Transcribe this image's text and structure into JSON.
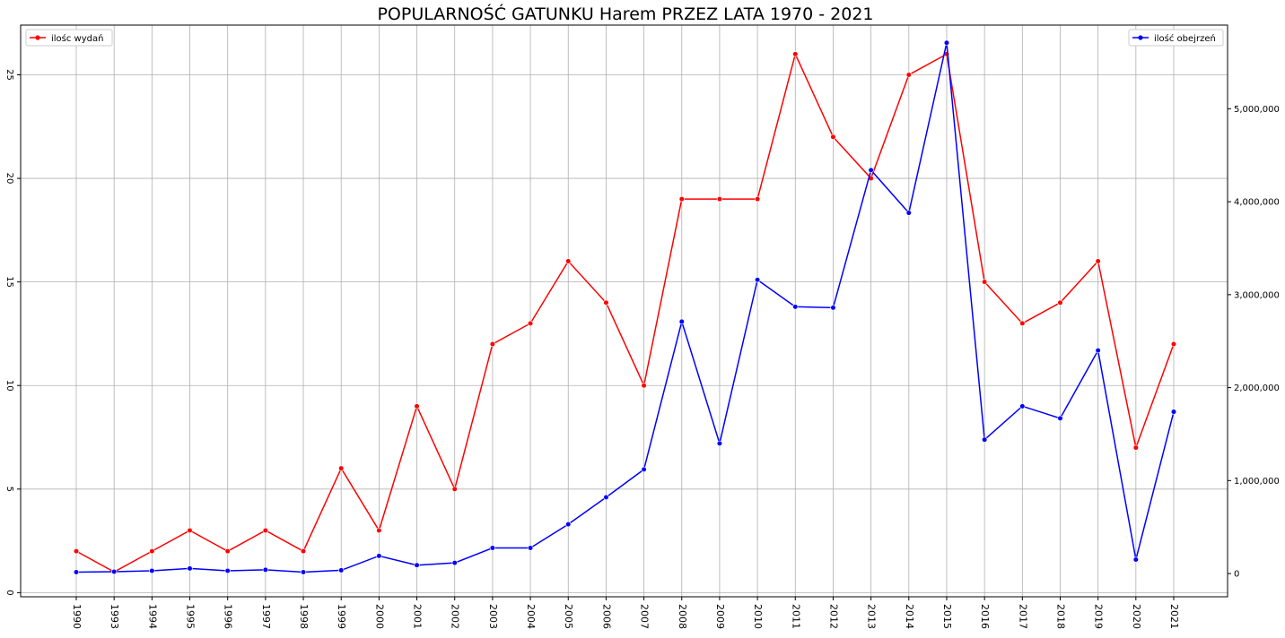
{
  "chart_data": {
    "type": "line",
    "title": "POPULARNOŚĆ GATUNKU Harem PRZEZ LATA 1970 - 2021",
    "xlabel": "",
    "ylabel": "",
    "y2label": "",
    "categories": [
      "1990",
      "1993",
      "1994",
      "1995",
      "1996",
      "1997",
      "1998",
      "1999",
      "2000",
      "2001",
      "2002",
      "2003",
      "2004",
      "2005",
      "2006",
      "2007",
      "2008",
      "2009",
      "2010",
      "2011",
      "2012",
      "2013",
      "2014",
      "2015",
      "2016",
      "2017",
      "2018",
      "2019",
      "2020",
      "2021"
    ],
    "ylim": [
      -0.2,
      27.4
    ],
    "y2lim": [
      -250000,
      5900000
    ],
    "yticks": [
      "0",
      "5",
      "10",
      "15",
      "20",
      "25"
    ],
    "y2ticks": [
      "0",
      "1,000,000",
      "2,000,000",
      "3,000,000",
      "4,000,000",
      "5,000,000"
    ],
    "grid": true,
    "series": [
      {
        "name": "ilośc wydań",
        "axis": "left",
        "color": "#ff0000",
        "legend_position": "top-left",
        "values": [
          2,
          1,
          2,
          3,
          2,
          3,
          2,
          6,
          3,
          9,
          5,
          12,
          13,
          16,
          14,
          10,
          19,
          19,
          19,
          26,
          22,
          20,
          25,
          26,
          15,
          13,
          14,
          16,
          7,
          12
        ]
      },
      {
        "name": "ilość obejrzeń",
        "axis": "right",
        "color": "#0000ff",
        "legend_position": "top-right",
        "values": [
          15000,
          20000,
          30000,
          55000,
          30000,
          40000,
          15000,
          35000,
          190000,
          90000,
          115000,
          275000,
          275000,
          530000,
          820000,
          1120000,
          2710000,
          1400000,
          3160000,
          2870000,
          2860000,
          4340000,
          3880000,
          5710000,
          1440000,
          1800000,
          1670000,
          2400000,
          150000,
          1740000
        ]
      }
    ]
  }
}
